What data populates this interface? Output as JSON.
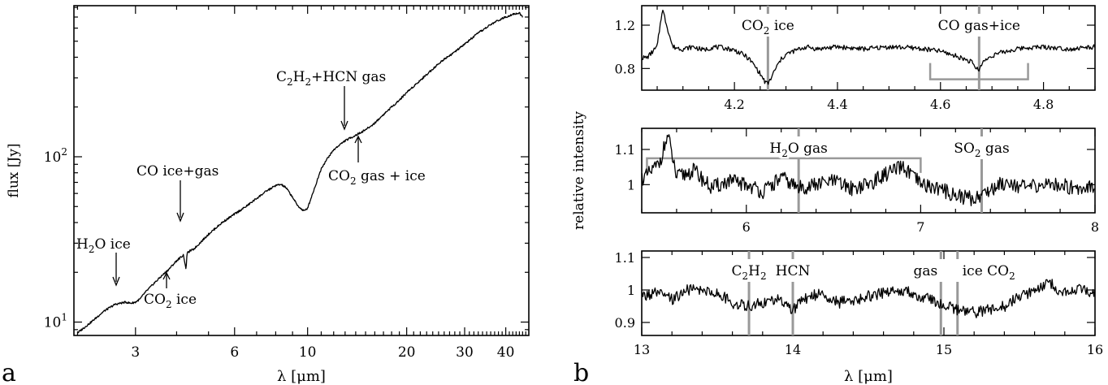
{
  "chart_data": [
    {
      "panel": "a",
      "type": "line",
      "xlabel": "λ [μm]",
      "ylabel": "flux [Jy]",
      "xscale": "log",
      "yscale": "log",
      "xlim": [
        1.95,
        47
      ],
      "ylim": [
        8.3,
        820
      ],
      "xticks": [
        3,
        6,
        10,
        20,
        30,
        40
      ],
      "yticks": [
        {
          "value": 10,
          "base": "10",
          "exp": "1"
        },
        {
          "value": 100,
          "base": "10",
          "exp": "2"
        }
      ],
      "series": [
        {
          "x": [
            2.0,
            2.2,
            2.4,
            2.6,
            2.8,
            2.9,
            3.0,
            3.1,
            3.2,
            3.4,
            3.6,
            3.8,
            4.0,
            4.1,
            4.2,
            4.25,
            4.27,
            4.3,
            4.4,
            4.5,
            4.7,
            5.0,
            5.5,
            6.0,
            6.5,
            7.0,
            7.5,
            8.0,
            8.3,
            8.6,
            9.0,
            9.3,
            9.6,
            9.8,
            10.0,
            10.3,
            10.7,
            11.0,
            11.5,
            12.0,
            12.5,
            13.0,
            13.5,
            14.0,
            14.5,
            15.0,
            15.5,
            16.0,
            17.0,
            18.0,
            19.0,
            20.0,
            22.0,
            24.0,
            26.0,
            28.0,
            30.0,
            33.0,
            36.0,
            38.0,
            40.0,
            42.0,
            44.0,
            45.0
          ],
          "y": [
            8.6,
            10.0,
            11.6,
            12.8,
            13.2,
            13.0,
            13.2,
            13.8,
            15.0,
            17.0,
            19.0,
            21.0,
            23.5,
            24.5,
            25.5,
            22.0,
            20.5,
            26.0,
            27.0,
            27.5,
            30.0,
            34.0,
            40.0,
            45.0,
            50.0,
            56.0,
            62.0,
            67.0,
            68.0,
            65.0,
            57.0,
            51.0,
            48.0,
            47.0,
            49.0,
            58.0,
            72.0,
            85.0,
            98.0,
            110.0,
            118.0,
            125.0,
            130.0,
            135.0,
            140.0,
            146.0,
            152.0,
            160.0,
            180.0,
            200.0,
            220.0,
            245.0,
            290.0,
            340.0,
            390.0,
            430.0,
            480.0,
            560.0,
            630.0,
            670.0,
            700.0,
            730.0,
            740.0,
            700.0
          ]
        }
      ],
      "annotations": [
        {
          "id": "h2o-ice",
          "base": "H",
          "sub": "2",
          "rest": "O ice",
          "at": [
            3.1,
            14.0
          ]
        },
        {
          "id": "co2-ice",
          "base": "CO",
          "sub": "2",
          "rest": " ice",
          "at": [
            4.27,
            20.5
          ]
        },
        {
          "id": "co-ice-gas",
          "base": "CO ice+gas",
          "at": [
            4.67,
            29.5
          ]
        },
        {
          "id": "c2h2-hcn-gas",
          "text": "C₂H₂+HCN gas",
          "at": [
            13.7,
            128.0
          ]
        },
        {
          "id": "co2-gas-ice",
          "base": "CO",
          "sub": "2",
          "rest": " gas + ice",
          "at": [
            15.0,
            146.0
          ]
        }
      ]
    },
    {
      "panel": "b",
      "ylabel": "relative intensity",
      "xlabel": "λ [μm]",
      "subplots": [
        {
          "type": "line",
          "xlim": [
            4.02,
            4.9
          ],
          "ylim": [
            0.6,
            1.38
          ],
          "xticks": [
            4.2,
            4.4,
            4.6,
            4.8
          ],
          "yticks": [
            0.8,
            1.2
          ],
          "ytick_labels": [
            "0.8",
            "1.2"
          ],
          "series": [
            {
              "x": [
                4.03,
                4.04,
                4.05,
                4.06,
                4.08,
                4.1,
                4.12,
                4.14,
                4.16,
                4.18,
                4.2,
                4.22,
                4.23,
                4.24,
                4.25,
                4.26,
                4.265,
                4.27,
                4.28,
                4.29,
                4.3,
                4.32,
                4.34,
                4.36,
                4.4,
                4.45,
                4.5,
                4.55,
                4.6,
                4.62,
                4.64,
                4.66,
                4.67,
                4.675,
                4.68,
                4.7,
                4.72,
                4.74,
                4.76,
                4.8,
                4.85,
                4.9
              ],
              "y": [
                0.9,
                0.95,
                1.0,
                1.35,
                1.0,
                0.98,
                1.0,
                0.97,
                1.0,
                0.99,
                0.97,
                0.92,
                0.88,
                0.82,
                0.75,
                0.67,
                0.66,
                0.7,
                0.8,
                0.88,
                0.93,
                0.97,
                1.0,
                0.98,
                1.0,
                0.98,
                1.0,
                0.99,
                0.96,
                0.93,
                0.9,
                0.86,
                0.8,
                0.78,
                0.85,
                0.92,
                0.95,
                0.97,
                0.99,
                1.0,
                0.98,
                1.0
              ]
            }
          ],
          "markers": [
            4.265,
            4.675
          ],
          "labels": [
            {
              "base": "CO",
              "sub": "2",
              "rest": " ice",
              "x": 4.265
            },
            {
              "base": "CO gas+ice",
              "x": 4.675
            }
          ],
          "bracket": {
            "x": [
              4.58,
              4.77
            ],
            "y": 0.7
          }
        },
        {
          "type": "line",
          "xlim": [
            5.4,
            8.0
          ],
          "ylim": [
            0.92,
            1.16
          ],
          "xticks": [
            6,
            7,
            8
          ],
          "yticks": [
            1.0,
            1.1
          ],
          "ytick_labels": [
            "1",
            "1.1"
          ],
          "series": [
            {
              "x": [
                5.42,
                5.5,
                5.55,
                5.6,
                5.7,
                5.8,
                5.9,
                6.0,
                6.1,
                6.2,
                6.3,
                6.4,
                6.5,
                6.6,
                6.7,
                6.8,
                6.9,
                7.0,
                7.1,
                7.2,
                7.3,
                7.38,
                7.45,
                7.5,
                7.6,
                7.7,
                7.8,
                7.9,
                8.0
              ],
              "y": [
                1.02,
                1.06,
                1.14,
                1.02,
                1.04,
                0.99,
                1.01,
                1.0,
                0.98,
                1.02,
                0.99,
                1.0,
                1.01,
                0.99,
                1.0,
                1.03,
                1.05,
                1.0,
                0.99,
                0.97,
                0.96,
                0.98,
                1.0,
                1.01,
                0.99,
                1.0,
                1.0,
                0.99,
                1.0
              ]
            }
          ],
          "markers": [
            6.3,
            7.35
          ],
          "labels": [
            {
              "base": "H",
              "sub": "2",
              "rest": "O gas",
              "x": 6.3
            },
            {
              "base": "SO",
              "sub": "2",
              "rest": " gas",
              "x": 7.35
            }
          ],
          "bracket": {
            "x": [
              5.43,
              7.0
            ],
            "y": 1.075
          }
        },
        {
          "type": "line",
          "xlim": [
            13.0,
            16.0
          ],
          "ylim": [
            0.86,
            1.12
          ],
          "xticks": [
            13,
            14,
            15,
            16
          ],
          "yticks": [
            0.9,
            1.0,
            1.1
          ],
          "ytick_labels": [
            "0.9",
            "1",
            "1.1"
          ],
          "series": [
            {
              "x": [
                13.0,
                13.1,
                13.2,
                13.3,
                13.4,
                13.5,
                13.6,
                13.7,
                13.8,
                13.9,
                14.0,
                14.1,
                14.2,
                14.3,
                14.4,
                14.5,
                14.6,
                14.7,
                14.8,
                14.9,
                15.0,
                15.1,
                15.2,
                15.3,
                15.4,
                15.5,
                15.6,
                15.7,
                15.8,
                15.9,
                16.0
              ],
              "y": [
                0.98,
                0.99,
                0.97,
                1.0,
                1.0,
                0.99,
                0.96,
                0.95,
                0.96,
                0.97,
                0.94,
                0.98,
                0.99,
                0.96,
                0.97,
                0.98,
                0.99,
                1.0,
                0.99,
                0.97,
                0.95,
                0.94,
                0.93,
                0.94,
                0.95,
                0.98,
                1.0,
                1.02,
                0.99,
                1.0,
                0.99
              ]
            }
          ],
          "markers": [
            13.71,
            14.0,
            14.98,
            15.09
          ],
          "labels": [
            {
              "base": "C",
              "sub": "2",
              "rest": "H",
              "sub2": "2",
              "x": 13.71
            },
            {
              "base": "HCN",
              "x": 14.0
            },
            {
              "base": "gas",
              "x": 14.98
            },
            {
              "base": "ice CO",
              "sub": "2",
              "x": 15.09
            }
          ]
        }
      ]
    }
  ],
  "panel_labels": {
    "a": "a",
    "b": "b"
  }
}
